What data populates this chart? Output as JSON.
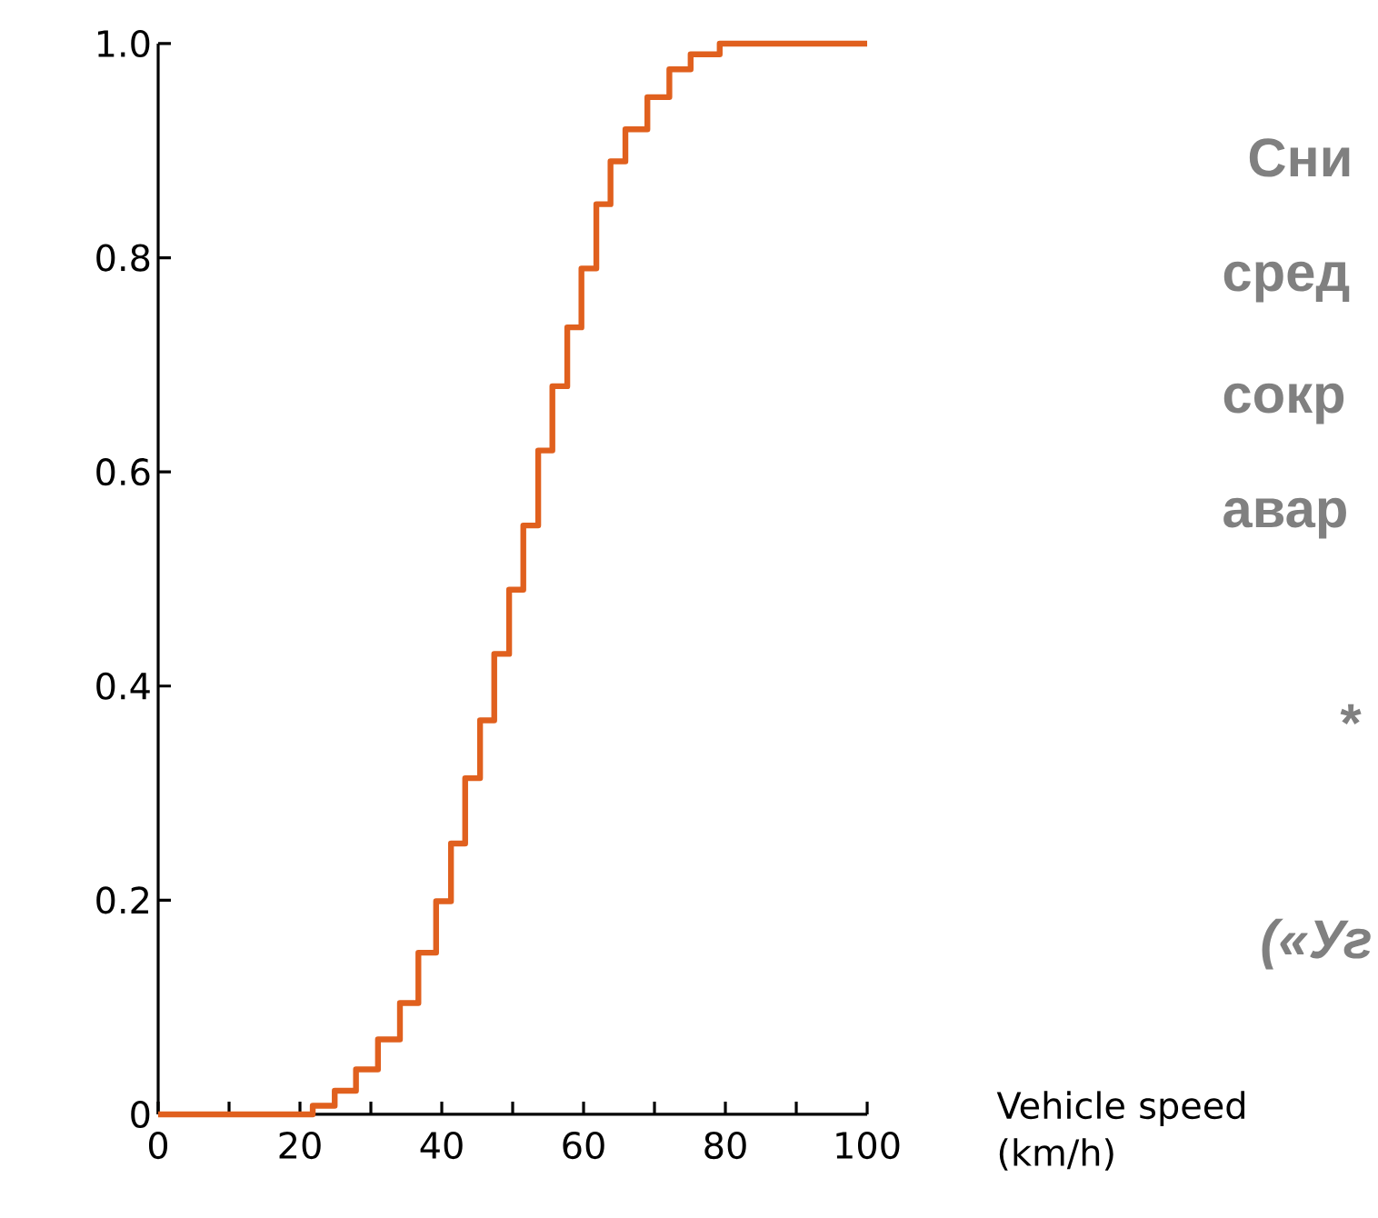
{
  "chart_data": {
    "type": "step",
    "xlabel": "Vehicle speed (km/h)",
    "annotations": [
      "Сни",
      "сред",
      "сокр",
      "авар",
      "*",
      "(«Уг"
    ],
    "x": [
      0,
      21.8,
      24.9,
      27.9,
      31.0,
      34.1,
      36.7,
      39.2,
      41.3,
      43.3,
      45.4,
      47.4,
      49.5,
      51.5,
      53.6,
      55.6,
      57.7,
      59.7,
      61.8,
      63.8,
      65.9,
      69.0,
      72.1,
      75.1,
      79.2,
      83.3,
      100
    ],
    "values": [
      0,
      0,
      0.008,
      0.022,
      0.042,
      0.07,
      0.104,
      0.151,
      0.199,
      0.253,
      0.314,
      0.368,
      0.43,
      0.49,
      0.55,
      0.62,
      0.68,
      0.735,
      0.79,
      0.85,
      0.89,
      0.92,
      0.95,
      0.976,
      0.99,
      1.0,
      1.0
    ],
    "color": "#e0601e",
    "xlim": [
      0,
      100
    ],
    "ylim": [
      0,
      1
    ],
    "xticks": [
      0,
      {
        "value": 10,
        "label": null
      },
      20,
      {
        "value": 30,
        "label": null
      },
      40,
      {
        "value": 50,
        "label": null
      },
      60,
      {
        "value": 70,
        "label": null
      },
      80,
      {
        "value": 90,
        "label": null
      },
      100
    ],
    "yticks": [
      0,
      0.2,
      0.4,
      0.6,
      0.8,
      {
        "value": 1,
        "label": "1.0"
      }
    ],
    "grid": false
  }
}
